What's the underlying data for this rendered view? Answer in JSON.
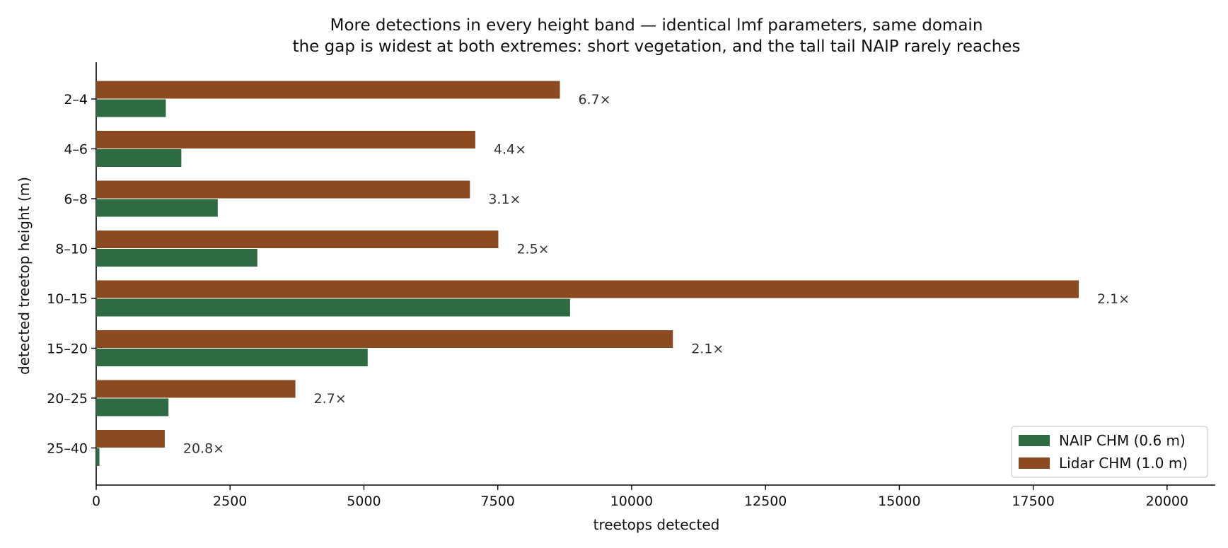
{
  "chart_data": {
    "type": "bar",
    "orientation": "horizontal",
    "title": "More detections in every height band — identical lmf parameters, same domain",
    "subtitle": "the gap is widest at both extremes: short vegetation, and the tall tail NAIP rarely reaches",
    "xlabel": "treetops detected",
    "ylabel": "detected treetop height (m)",
    "xlim": [
      0,
      20900
    ],
    "x_ticks": [
      "0",
      "2500",
      "5000",
      "7500",
      "10000",
      "12500",
      "15000",
      "17500",
      "20000"
    ],
    "categories": [
      "2–4",
      "4–6",
      "6–8",
      "8–10",
      "10–15",
      "15–20",
      "20–25",
      "25–40"
    ],
    "series": [
      {
        "name": "NAIP CHM (0.6 m)",
        "color": "#2e6b42",
        "values": [
          1300,
          1590,
          2270,
          3010,
          8850,
          5070,
          1350,
          60
        ]
      },
      {
        "name": "Lidar CHM (1.0 m)",
        "color": "#8b4a1f",
        "values": [
          8660,
          7080,
          6980,
          7510,
          18350,
          10770,
          3720,
          1280
        ]
      }
    ],
    "ratio_labels": [
      "6.7×",
      "4.4×",
      "3.1×",
      "2.5×",
      "2.1×",
      "2.1×",
      "2.7×",
      "20.8×"
    ],
    "grid": false,
    "legend_position": "lower-right"
  }
}
